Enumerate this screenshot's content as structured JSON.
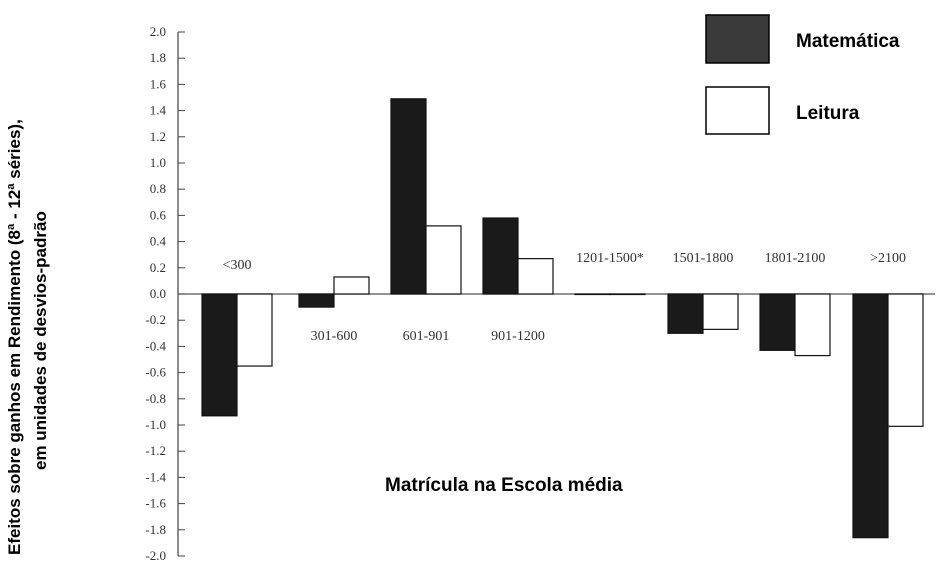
{
  "chart_data": {
    "type": "bar",
    "title": "",
    "xlabel": "Matrícula na Escola média",
    "ylabel_line1": "Efeitos sobre  ganhos em Rendimento (8ª - 12ª séries),",
    "ylabel_line2": "em unidades de desvios-padrão",
    "ylim": [
      -2.0,
      2.0
    ],
    "yticks": [
      "2.0",
      "1.8",
      "1.6",
      "1.4",
      "1.2",
      "1.0",
      "0.8",
      "0.6",
      "0.4",
      "0.2",
      "0.0",
      "-0.2",
      "-0.4",
      "-0.6",
      "-0.8",
      "-1.0",
      "-1.2",
      "-1.4",
      "-1.6",
      "-1.8",
      "-2.0"
    ],
    "categories": [
      "<300",
      "301-600",
      "601-901",
      "901-1200",
      "1201-1500*",
      "1501-1800",
      "1801-2100",
      ">2100"
    ],
    "series": [
      {
        "name": "Matemática",
        "color": "#1a1a1a",
        "values": [
          -0.93,
          -0.1,
          1.49,
          0.58,
          0.0,
          -0.3,
          -0.43,
          -1.86
        ]
      },
      {
        "name": "Leitura",
        "color": "#ffffff",
        "values": [
          -0.55,
          0.13,
          0.52,
          0.27,
          0.0,
          -0.27,
          -0.47,
          -1.01
        ]
      }
    ],
    "legend_position": "top-right",
    "grid": false
  }
}
